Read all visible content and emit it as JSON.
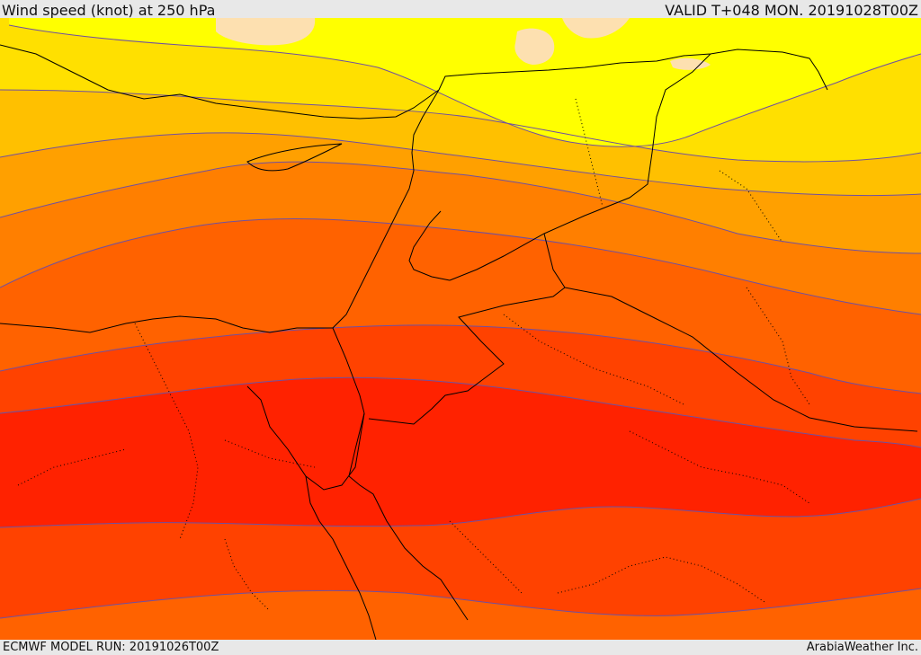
{
  "header": {
    "title": "Wind speed (knot) at 250 hPa",
    "valid": "VALID T+048 MON. 20191028T00Z"
  },
  "footer": {
    "model_run": "ECMWF MODEL RUN: 20191026T00Z",
    "credit": "ArabiaWeather Inc."
  },
  "map": {
    "field": "wind speed at 250 hPa",
    "colors": {
      "band_lightest": "#fde0b0",
      "band_yellow": "#ffff00",
      "band_gold": "#ffe000",
      "band_amber": "#ffc000",
      "band_orange_light": "#ffa000",
      "band_orange": "#ff7f00",
      "band_orange_dark": "#ff6200",
      "band_red_orange": "#ff4200",
      "band_red": "#ff2200",
      "contour_line": "#7050a0",
      "border_line": "#000000"
    }
  }
}
